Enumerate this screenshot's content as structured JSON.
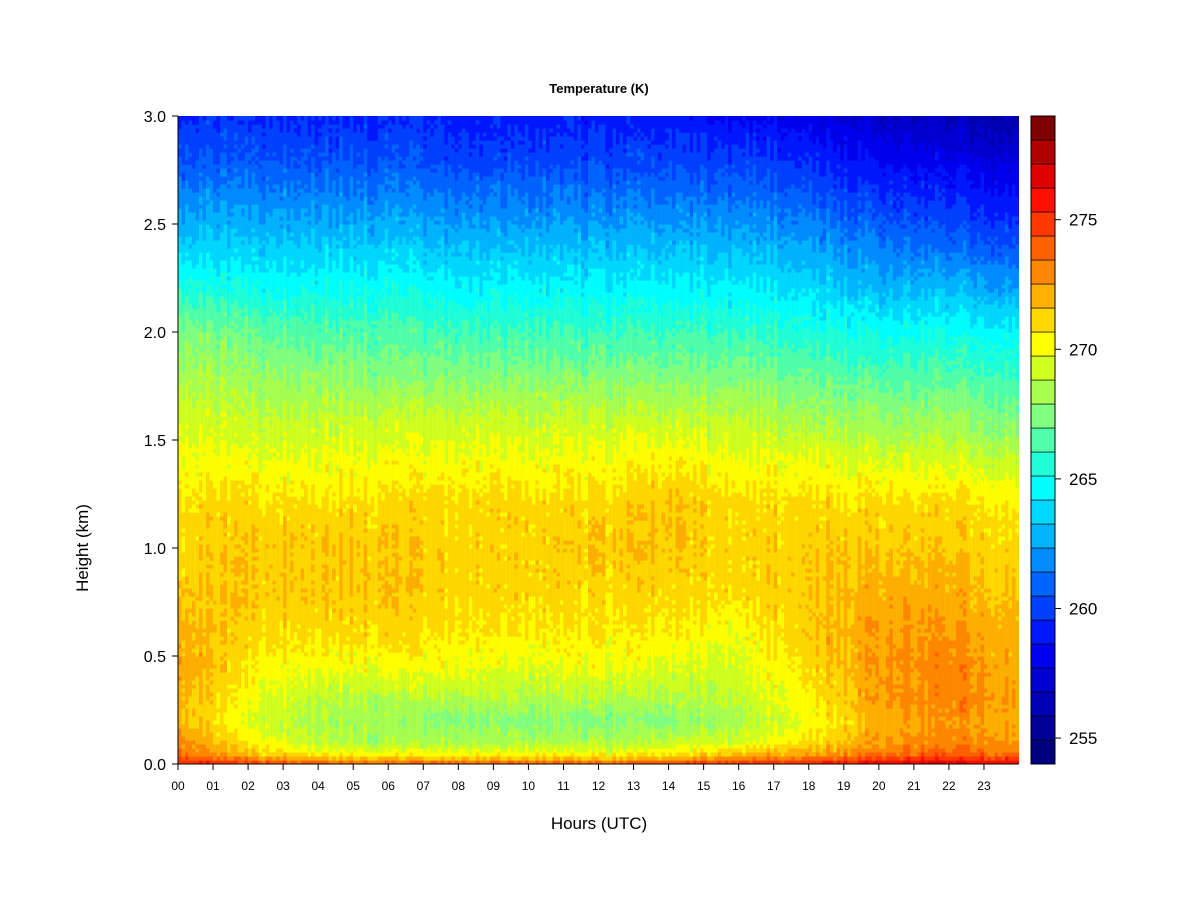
{
  "chart_data": {
    "type": "heatmap",
    "title": "Temperature (K)",
    "xlabel": "Hours (UTC)",
    "ylabel": "Height (km)",
    "x_range": [
      0,
      24
    ],
    "y_range": [
      0,
      3
    ],
    "x_ticks": [
      {
        "value": 0,
        "label": "00"
      },
      {
        "value": 1,
        "label": "01"
      },
      {
        "value": 2,
        "label": "02"
      },
      {
        "value": 3,
        "label": "03"
      },
      {
        "value": 4,
        "label": "04"
      },
      {
        "value": 5,
        "label": "05"
      },
      {
        "value": 6,
        "label": "06"
      },
      {
        "value": 7,
        "label": "07"
      },
      {
        "value": 8,
        "label": "08"
      },
      {
        "value": 9,
        "label": "09"
      },
      {
        "value": 10,
        "label": "10"
      },
      {
        "value": 11,
        "label": "11"
      },
      {
        "value": 12,
        "label": "12"
      },
      {
        "value": 13,
        "label": "13"
      },
      {
        "value": 14,
        "label": "14"
      },
      {
        "value": 15,
        "label": "15"
      },
      {
        "value": 16,
        "label": "16"
      },
      {
        "value": 17,
        "label": "17"
      },
      {
        "value": 18,
        "label": "18"
      },
      {
        "value": 19,
        "label": "19"
      },
      {
        "value": 20,
        "label": "20"
      },
      {
        "value": 21,
        "label": "21"
      },
      {
        "value": 22,
        "label": "22"
      },
      {
        "value": 23,
        "label": "23"
      }
    ],
    "y_ticks": [
      {
        "value": 0.0,
        "label": "0.0"
      },
      {
        "value": 0.5,
        "label": "0.5"
      },
      {
        "value": 1.0,
        "label": "1.0"
      },
      {
        "value": 1.5,
        "label": "1.5"
      },
      {
        "value": 2.0,
        "label": "2.0"
      },
      {
        "value": 2.5,
        "label": "2.5"
      },
      {
        "value": 3.0,
        "label": "3.0"
      }
    ],
    "colorbar": {
      "range": [
        254,
        279
      ],
      "ticks": [
        {
          "value": 255,
          "label": "255"
        },
        {
          "value": 260,
          "label": "260"
        },
        {
          "value": 265,
          "label": "265"
        },
        {
          "value": 270,
          "label": "270"
        },
        {
          "value": 275,
          "label": "275"
        }
      ],
      "colors": [
        "#00007f",
        "#000096",
        "#0000b4",
        "#0000d2",
        "#0000f0",
        "#0018ff",
        "#0040ff",
        "#0064ff",
        "#008cff",
        "#00b4ff",
        "#00d8ff",
        "#00ffff",
        "#20ffd8",
        "#50ffaa",
        "#80ff80",
        "#a8ff50",
        "#d0ff20",
        "#ffff00",
        "#ffd800",
        "#ffb000",
        "#ff8800",
        "#ff6000",
        "#ff3800",
        "#ff1000",
        "#e00000",
        "#b00000",
        "#7f0000"
      ]
    },
    "height_km": [
      0.0,
      0.02,
      0.05,
      0.1,
      0.2,
      0.3,
      0.45,
      0.6,
      0.8,
      1.0,
      1.2,
      1.4,
      1.6,
      1.8,
      2.0,
      2.2,
      2.4,
      2.6,
      2.8,
      3.0
    ],
    "hours": [
      0,
      2,
      4,
      6,
      8,
      10,
      12,
      14,
      16,
      18,
      20,
      22,
      24
    ],
    "temperature_K": [
      [
        276.0,
        274.5,
        273.5,
        273.0,
        272.0,
        272.0,
        272.5,
        272.0,
        271.5,
        271.0,
        271.0,
        270.0,
        269.5,
        268.5,
        267.5,
        265.5,
        263.5,
        262.0,
        260.5,
        259.5
      ],
      [
        275.0,
        273.5,
        271.5,
        270.5,
        269.5,
        270.0,
        270.5,
        271.0,
        271.5,
        271.5,
        271.0,
        270.0,
        269.0,
        268.0,
        267.0,
        265.0,
        263.5,
        262.0,
        260.5,
        259.5
      ],
      [
        274.5,
        272.5,
        270.5,
        269.0,
        268.5,
        269.0,
        270.0,
        271.0,
        271.5,
        271.5,
        271.0,
        270.0,
        269.0,
        268.0,
        266.5,
        265.0,
        263.5,
        262.0,
        260.5,
        259.5
      ],
      [
        274.5,
        272.0,
        270.0,
        268.5,
        268.0,
        268.5,
        270.0,
        271.0,
        271.5,
        271.5,
        271.0,
        270.0,
        269.0,
        267.5,
        266.5,
        265.0,
        263.5,
        262.0,
        260.5,
        259.5
      ],
      [
        274.5,
        272.0,
        270.0,
        268.5,
        267.5,
        268.5,
        270.0,
        270.5,
        271.0,
        271.0,
        271.0,
        270.0,
        269.0,
        267.5,
        266.0,
        264.5,
        263.0,
        261.5,
        260.0,
        259.0
      ],
      [
        274.5,
        272.0,
        270.0,
        268.5,
        267.5,
        268.5,
        269.5,
        270.5,
        271.0,
        271.0,
        271.0,
        270.0,
        269.0,
        267.5,
        266.0,
        264.5,
        263.0,
        261.5,
        260.0,
        259.0
      ],
      [
        274.5,
        272.0,
        270.0,
        268.5,
        267.5,
        268.5,
        270.0,
        270.5,
        271.0,
        271.5,
        271.0,
        270.0,
        269.0,
        267.5,
        266.0,
        264.5,
        263.0,
        261.5,
        260.0,
        259.0
      ],
      [
        275.0,
        272.5,
        270.5,
        269.0,
        267.5,
        268.5,
        269.5,
        270.5,
        271.0,
        271.5,
        271.5,
        270.5,
        269.0,
        267.5,
        266.0,
        264.5,
        263.0,
        261.5,
        260.0,
        259.0
      ],
      [
        275.5,
        273.5,
        271.5,
        269.5,
        268.5,
        269.0,
        269.5,
        270.0,
        271.0,
        271.0,
        271.0,
        270.0,
        269.0,
        267.5,
        266.0,
        264.5,
        263.0,
        261.5,
        260.0,
        258.5
      ],
      [
        276.0,
        274.0,
        272.0,
        271.0,
        270.0,
        270.5,
        271.0,
        271.5,
        271.5,
        271.5,
        271.0,
        270.0,
        268.5,
        267.0,
        265.5,
        264.0,
        262.5,
        261.0,
        259.5,
        258.0
      ],
      [
        276.5,
        275.0,
        273.5,
        272.5,
        272.0,
        272.5,
        272.5,
        272.5,
        272.0,
        271.5,
        271.0,
        269.5,
        268.0,
        266.5,
        265.0,
        263.0,
        261.5,
        260.0,
        258.5,
        257.0
      ],
      [
        277.0,
        275.5,
        274.0,
        273.0,
        272.5,
        273.0,
        273.0,
        272.5,
        272.0,
        271.5,
        271.0,
        269.5,
        268.0,
        266.5,
        265.0,
        263.0,
        261.0,
        259.5,
        258.0,
        256.5
      ],
      [
        276.5,
        275.0,
        273.5,
        272.5,
        272.0,
        272.5,
        272.0,
        272.0,
        271.5,
        271.0,
        270.5,
        269.0,
        267.5,
        266.0,
        264.5,
        262.5,
        260.5,
        259.0,
        257.5,
        256.0
      ]
    ]
  }
}
